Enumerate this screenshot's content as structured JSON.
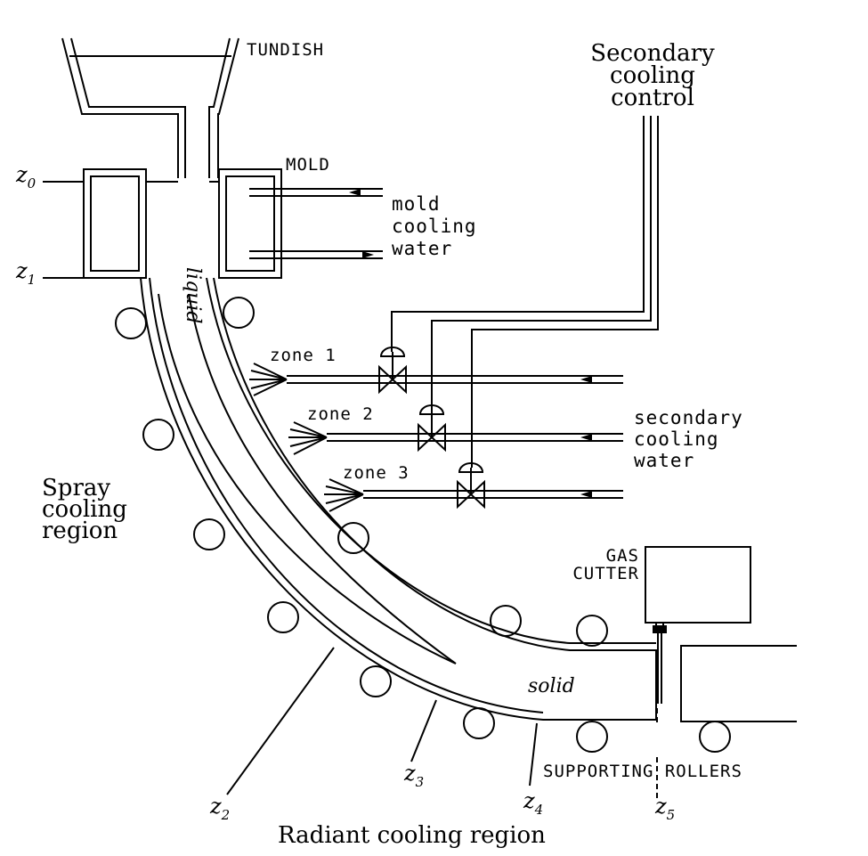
{
  "labels": {
    "tundish": "TUNDISH",
    "mold": "MOLD",
    "secondary_control": [
      "Secondary",
      "cooling",
      "control"
    ],
    "mold_cooling_water": [
      "mold",
      "cooling",
      "water"
    ],
    "liquid": "liquid",
    "zone1": "zone 1",
    "zone2": "zone 2",
    "zone3": "zone 3",
    "secondary_cooling_water": [
      "secondary",
      "cooling",
      "water"
    ],
    "spray_region": [
      "Spray",
      "cooling",
      "region"
    ],
    "gas_cutter": [
      "GAS",
      "CUTTER"
    ],
    "solid": "solid",
    "supporting_rollers": "SUPPORTING ROLLERS",
    "radiant_region": "Radiant cooling region",
    "z_main": "z",
    "z_subs": [
      "0",
      "1",
      "2",
      "3",
      "4",
      "5"
    ]
  }
}
